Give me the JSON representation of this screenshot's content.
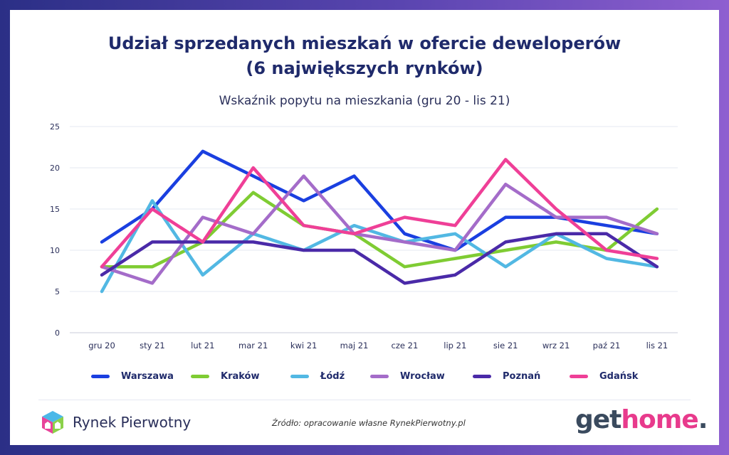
{
  "title_line1": "Udział sprzedanych mieszkań w ofercie deweloperów",
  "title_line2": "(6 największych rynków)",
  "subtitle": "Wskaźnik popytu na mieszkania (gru 20 - lis 21)",
  "source": "Źródło: opracowanie własne RynekPierwotny.pl",
  "logo_left_text": "Rynek Pierwotny",
  "logo_right": {
    "part1": "get",
    "part2": "home",
    "part3": "."
  },
  "chart_data": {
    "type": "line",
    "title": "Wskaźnik popytu na mieszkania (gru 20 - lis 21)",
    "categories": [
      "gru 20",
      "sty 21",
      "lut 21",
      "mar 21",
      "kwi 21",
      "maj 21",
      "cze 21",
      "lip 21",
      "sie 21",
      "wrz 21",
      "paź 21",
      "lis 21"
    ],
    "ylim": [
      0,
      25
    ],
    "yticks": [
      0,
      5,
      10,
      15,
      20,
      25
    ],
    "grid": true,
    "legend_position": "bottom",
    "series": [
      {
        "name": "Warszawa",
        "color": "#1a3fe0",
        "values": [
          11,
          15,
          22,
          19,
          16,
          19,
          12,
          10,
          14,
          14,
          13,
          12
        ]
      },
      {
        "name": "Kraków",
        "color": "#7fcc33",
        "values": [
          8,
          8,
          11,
          17,
          13,
          12,
          8,
          9,
          10,
          11,
          10,
          15
        ]
      },
      {
        "name": "Łódź",
        "color": "#52b8e3",
        "values": [
          5,
          16,
          7,
          12,
          10,
          13,
          11,
          12,
          8,
          12,
          9,
          8
        ]
      },
      {
        "name": "Wrocław",
        "color": "#a46cc9",
        "values": [
          8,
          6,
          14,
          12,
          19,
          12,
          11,
          10,
          18,
          14,
          14,
          12
        ]
      },
      {
        "name": "Poznań",
        "color": "#4a2aa8",
        "values": [
          7,
          11,
          11,
          11,
          10,
          10,
          6,
          7,
          11,
          12,
          12,
          8
        ]
      },
      {
        "name": "Gdańsk",
        "color": "#ef3f97",
        "values": [
          8,
          15,
          11,
          20,
          13,
          12,
          14,
          13,
          21,
          15,
          10,
          9
        ]
      }
    ]
  }
}
